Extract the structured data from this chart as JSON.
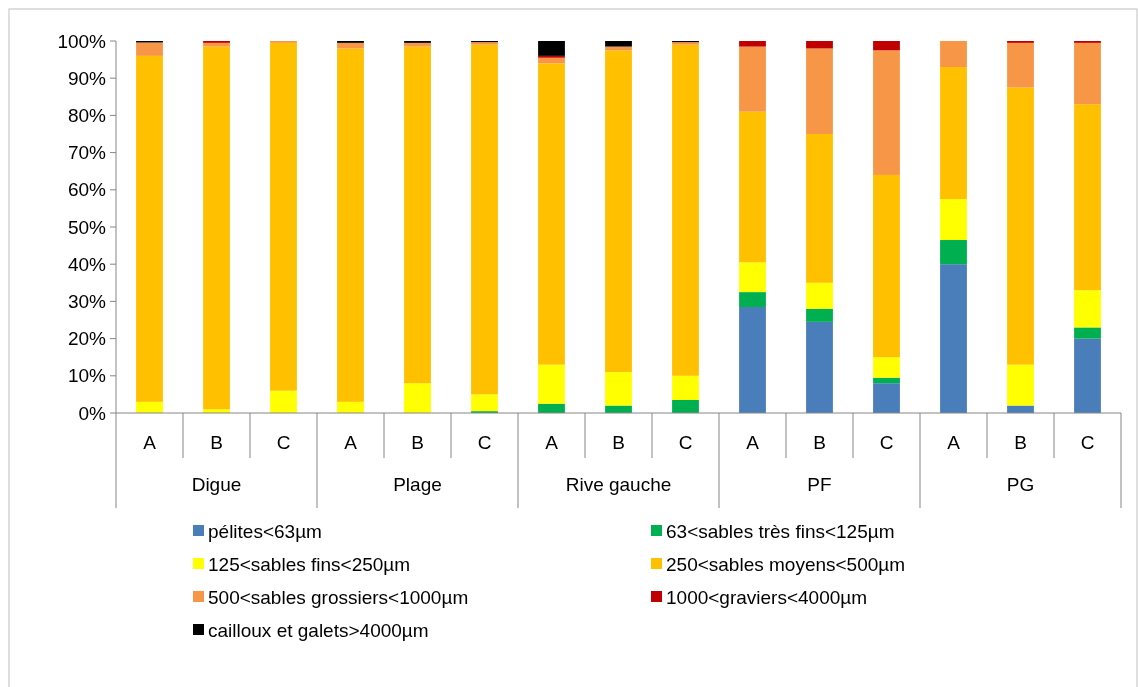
{
  "chart_data": {
    "type": "bar",
    "stacked": true,
    "categories": [
      "A",
      "B",
      "C",
      "A",
      "B",
      "C",
      "A",
      "B",
      "C",
      "A",
      "B",
      "C",
      "A",
      "B",
      "C"
    ],
    "annotations": [
      "Digue",
      "Plage",
      "Rive gauche",
      "PF",
      "PG"
    ],
    "ylim": [
      0,
      100
    ],
    "yticks": [
      {
        "value": 0,
        "label": "0%"
      },
      {
        "value": 10,
        "label": "10%"
      },
      {
        "value": 20,
        "label": "20%"
      },
      {
        "value": 30,
        "label": "30%"
      },
      {
        "value": 40,
        "label": "40%"
      },
      {
        "value": 50,
        "label": "50%"
      },
      {
        "value": 60,
        "label": "60%"
      },
      {
        "value": 70,
        "label": "70%"
      },
      {
        "value": 80,
        "label": "80%"
      },
      {
        "value": 90,
        "label": "90%"
      },
      {
        "value": 100,
        "label": "100%"
      }
    ],
    "legend": "bottom",
    "grid": false,
    "series": [
      {
        "name": "pélites<63µm",
        "color": "#4a7ebb",
        "values": [
          0,
          0,
          0,
          0,
          0,
          0,
          0,
          0,
          0,
          28.5,
          24.5,
          8,
          40,
          2,
          20
        ]
      },
      {
        "name": "63<sables très fins<125µm",
        "color": "#00b050",
        "values": [
          0,
          0,
          0,
          0,
          0,
          0.5,
          2.5,
          2,
          3.5,
          4,
          3.5,
          1.5,
          6.5,
          0,
          3
        ]
      },
      {
        "name": "125<sables fins<250µm",
        "color": "#ffff00",
        "values": [
          3,
          1,
          6,
          3,
          8,
          4.5,
          10.5,
          9,
          6.5,
          8,
          7,
          5.5,
          11,
          11,
          10
        ]
      },
      {
        "name": "250<sables moyens<500µm",
        "color": "#ffc000",
        "values": [
          93,
          97.5,
          93.5,
          95,
          90.5,
          94,
          81,
          86.5,
          89,
          40.5,
          40,
          49,
          35.5,
          74.5,
          50
        ]
      },
      {
        "name": "500<sables grossiers<1000µm",
        "color": "#f79646",
        "values": [
          3.6,
          1,
          0.5,
          1.5,
          1,
          0.7,
          1.5,
          1,
          0.7,
          17.5,
          23,
          33.5,
          7,
          12,
          16.5
        ]
      },
      {
        "name": "1000<graviers<4000µm",
        "color": "#c00000",
        "values": [
          0,
          0.5,
          0,
          0,
          0,
          0,
          0.5,
          0,
          0,
          1.5,
          2,
          2.5,
          0,
          0.5,
          0.5
        ]
      },
      {
        "name": "cailloux et galets>4000µm",
        "color": "#000000",
        "values": [
          0.4,
          0,
          0,
          0.5,
          0.5,
          0.3,
          4,
          1.5,
          0.3,
          0,
          0,
          0,
          0,
          0,
          0
        ]
      }
    ]
  }
}
